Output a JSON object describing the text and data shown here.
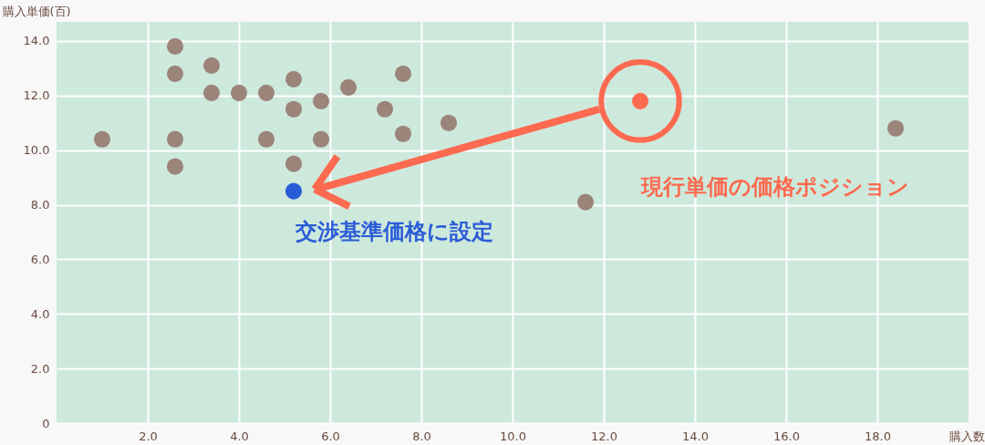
{
  "chart_data": {
    "type": "scatter",
    "xlabel": "購入数",
    "ylabel": "購入単価(百)",
    "xlim": [
      0,
      20
    ],
    "ylim": [
      0,
      14.7
    ],
    "xticks": [
      {
        "value": 2,
        "label": "2.0"
      },
      {
        "value": 4,
        "label": "4.0"
      },
      {
        "value": 6,
        "label": "6.0"
      },
      {
        "value": 8,
        "label": "8.0"
      },
      {
        "value": 10,
        "label": "10.0"
      },
      {
        "value": 12,
        "label": "12.0"
      },
      {
        "value": 14,
        "label": "14.0"
      },
      {
        "value": 16,
        "label": "16.0"
      },
      {
        "value": 18,
        "label": "18.0"
      }
    ],
    "yticks": [
      0,
      {
        "value": 2,
        "label": "2.0"
      },
      {
        "value": 4,
        "label": "4.0"
      },
      {
        "value": 6,
        "label": "6.0"
      },
      {
        "value": 8,
        "label": "8.0"
      },
      {
        "value": 10,
        "label": "10.0"
      },
      {
        "value": 12,
        "label": "12.0"
      },
      {
        "value": 14,
        "label": "14.0"
      }
    ],
    "grid": true,
    "legend": false,
    "marker": "circle",
    "series": [
      {
        "color": "#9b847a",
        "x": [
          1.0,
          2.6,
          2.6,
          2.6,
          2.6,
          3.4,
          3.4,
          4.0,
          4.6,
          4.6,
          5.2,
          5.2,
          5.2,
          5.8,
          5.8,
          6.4,
          7.2,
          7.6,
          7.6,
          8.6,
          11.6,
          18.4
        ],
        "values": [
          10.4,
          13.8,
          12.8,
          10.4,
          9.4,
          13.1,
          12.1,
          12.1,
          12.1,
          10.4,
          12.6,
          11.5,
          9.5,
          11.8,
          10.4,
          12.3,
          11.5,
          12.8,
          10.6,
          11.0,
          8.1,
          10.8
        ]
      },
      {
        "color": "#2a5bd7",
        "x": [
          5.2
        ],
        "values": [
          8.5
        ]
      },
      {
        "color": "#ff6a50",
        "x": [
          12.8
        ],
        "values": [
          11.8
        ]
      }
    ],
    "annotations": [
      "交渉基準価格に設定",
      "現行単価の価格ポジション"
    ]
  }
}
